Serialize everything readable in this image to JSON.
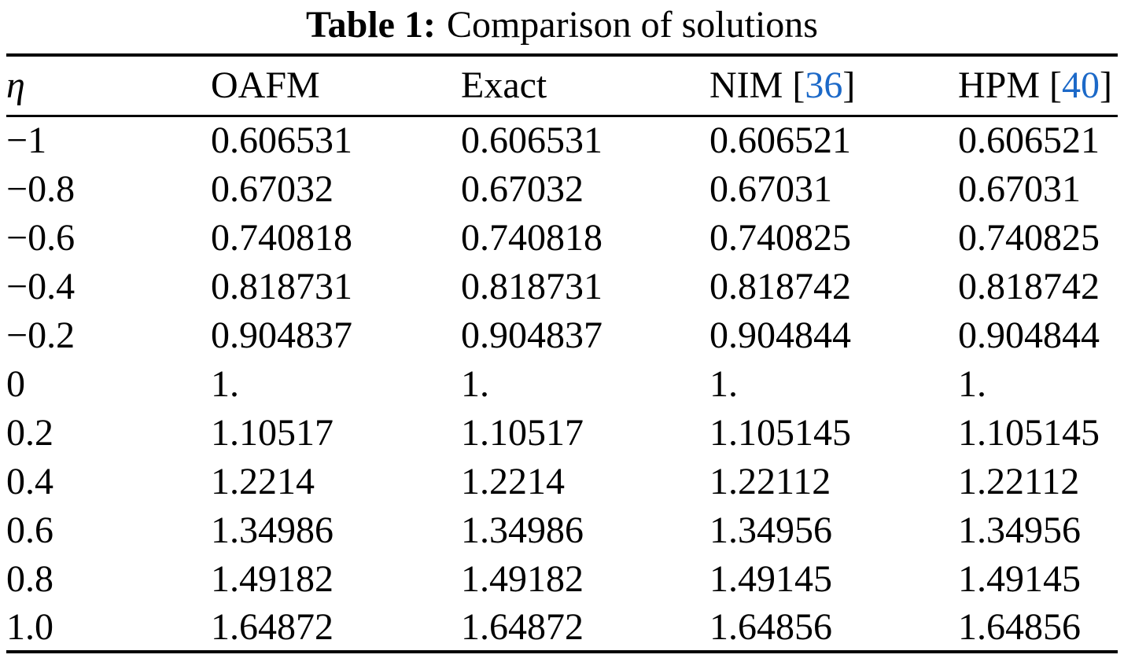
{
  "caption": {
    "label": "Table 1:",
    "text": "Comparison of solutions"
  },
  "table": {
    "link_color": "#1C69C8",
    "text_color": "#000000",
    "columns": [
      {
        "key": "eta",
        "label": "η",
        "italic": true,
        "ref": null
      },
      {
        "key": "oafm",
        "label": "OAFM",
        "italic": false,
        "ref": null
      },
      {
        "key": "exact",
        "label": "Exact",
        "italic": false,
        "ref": null
      },
      {
        "key": "nim",
        "label": "NIM",
        "italic": false,
        "ref": "36"
      },
      {
        "key": "hpm",
        "label": "HPM",
        "italic": false,
        "ref": "40"
      }
    ],
    "rows": [
      [
        "−1",
        "0.606531",
        "0.606531",
        "0.606521",
        "0.606521"
      ],
      [
        "−0.8",
        "0.67032",
        "0.67032",
        "0.67031",
        "0.67031"
      ],
      [
        "−0.6",
        "0.740818",
        "0.740818",
        "0.740825",
        "0.740825"
      ],
      [
        "−0.4",
        "0.818731",
        "0.818731",
        "0.818742",
        "0.818742"
      ],
      [
        "−0.2",
        "0.904837",
        "0.904837",
        "0.904844",
        "0.904844"
      ],
      [
        "0",
        "1.",
        "1.",
        "1.",
        "1."
      ],
      [
        "0.2",
        "1.10517",
        "1.10517",
        "1.105145",
        "1.105145"
      ],
      [
        "0.4",
        "1.2214",
        "1.2214",
        "1.22112",
        "1.22112"
      ],
      [
        "0.6",
        "1.34986",
        "1.34986",
        "1.34956",
        "1.34956"
      ],
      [
        "0.8",
        "1.49182",
        "1.49182",
        "1.49145",
        "1.49145"
      ],
      [
        "1.0",
        "1.64872",
        "1.64872",
        "1.64856",
        "1.64856"
      ]
    ]
  }
}
